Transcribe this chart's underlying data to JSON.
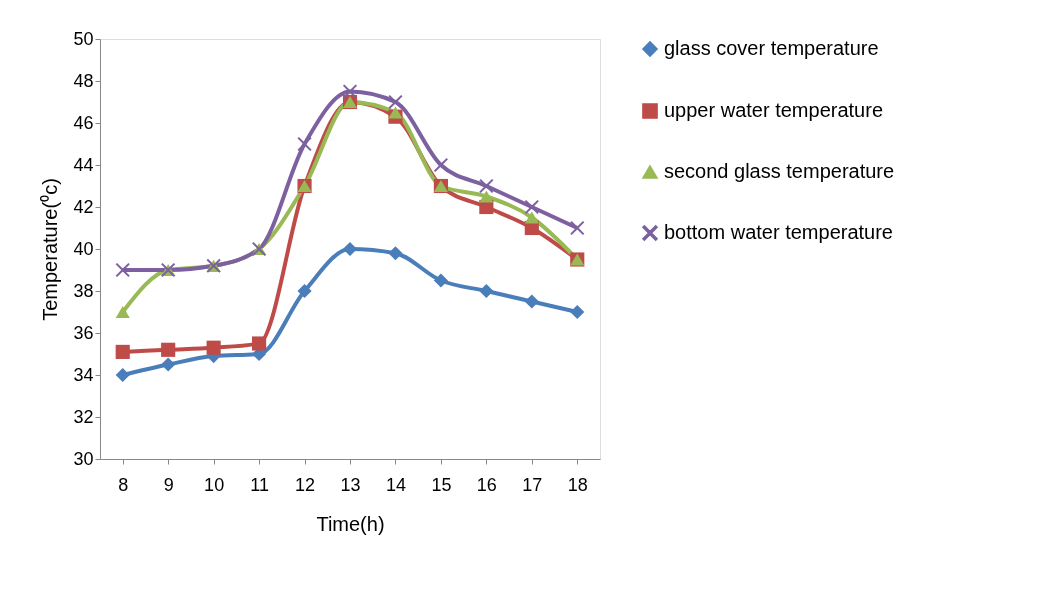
{
  "chart_data": {
    "type": "line",
    "xlabel": "Time(h)",
    "ylabel": "Temperature(⁰c)",
    "categories": [
      "8",
      "9",
      "10",
      "11",
      "12",
      "13",
      "14",
      "15",
      "16",
      "17",
      "18"
    ],
    "ylim": [
      30,
      50
    ],
    "yticks": [
      30,
      32,
      34,
      36,
      38,
      40,
      42,
      44,
      46,
      48,
      50
    ],
    "grid": false,
    "legend": "right",
    "series": [
      {
        "name": "glass cover temperature",
        "color": "#4a7ebb",
        "marker": "diamond",
        "values": [
          34,
          34.5,
          34.9,
          35,
          38,
          40,
          39.8,
          38.5,
          38,
          37.5,
          37
        ]
      },
      {
        "name": "upper water temperature",
        "color": "#be4b48",
        "marker": "square",
        "values": [
          35.1,
          35.2,
          35.3,
          35.5,
          43,
          47,
          46.3,
          43,
          42,
          41,
          39.5
        ]
      },
      {
        "name": "second glass temperature",
        "color": "#98b954",
        "marker": "triangle",
        "values": [
          37,
          39,
          39.2,
          40,
          43,
          47,
          46.5,
          43,
          42.5,
          41.5,
          39.5
        ]
      },
      {
        "name": "bottom water temperature",
        "color": "#7d60a0",
        "marker": "cross",
        "values": [
          39,
          39,
          39.2,
          40,
          45,
          47.5,
          47,
          44,
          43,
          42,
          41
        ]
      }
    ]
  }
}
